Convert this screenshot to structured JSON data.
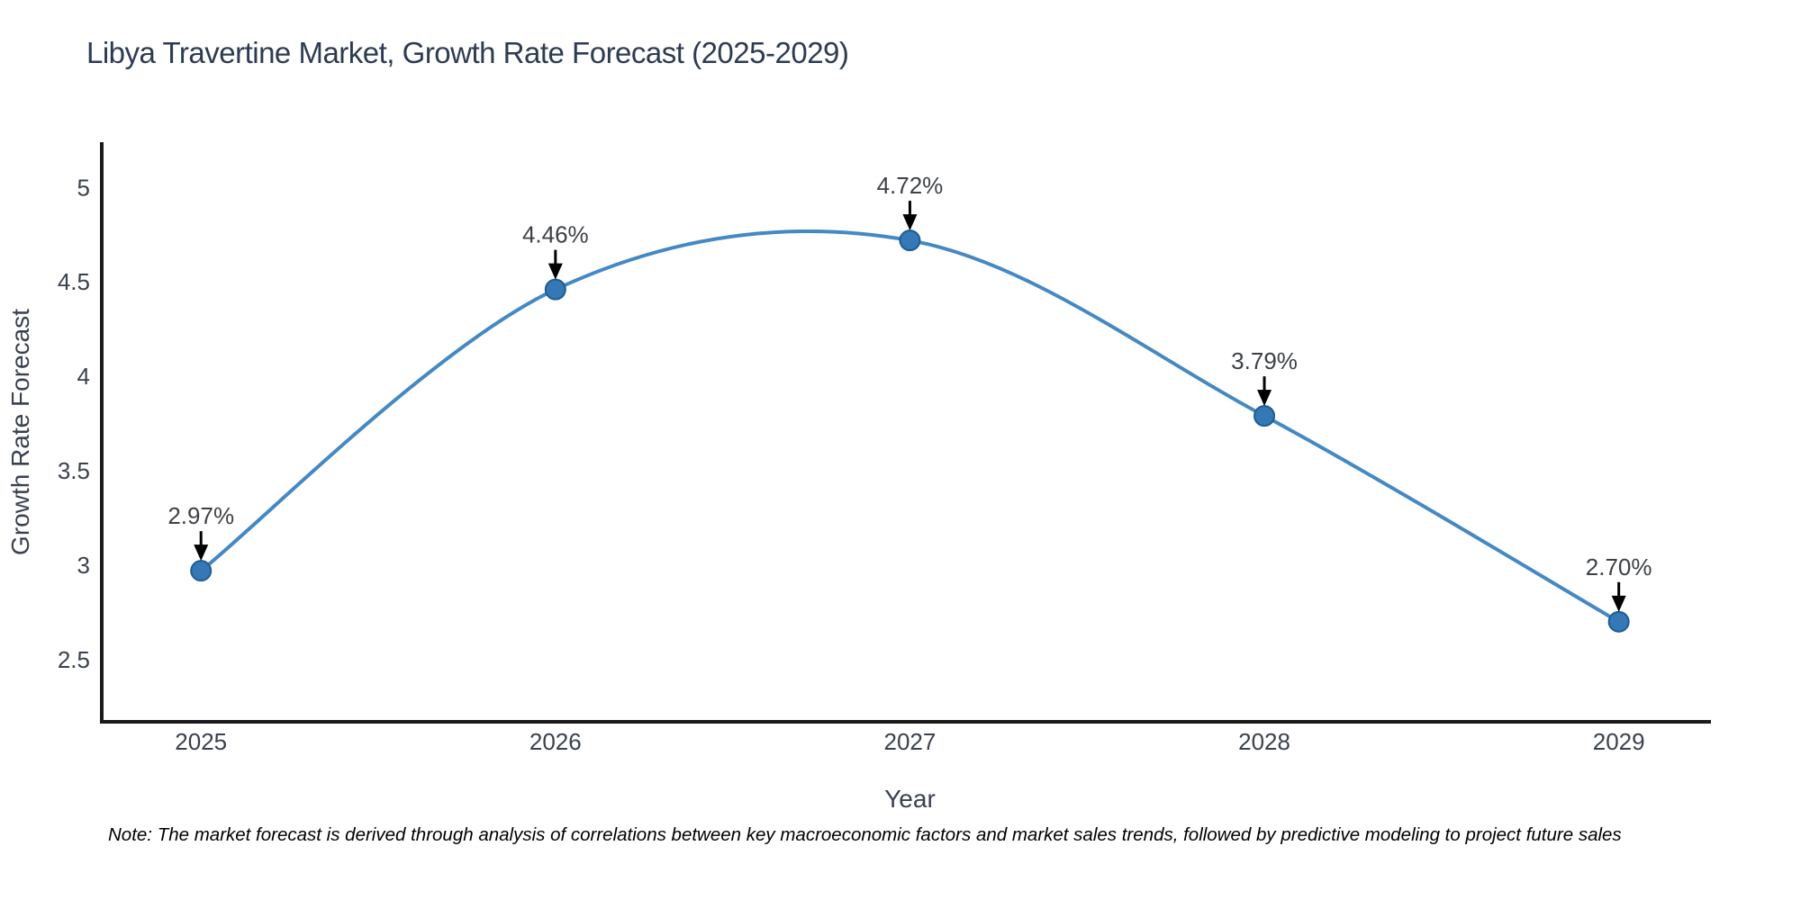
{
  "title": "Libya Travertine Market, Growth Rate Forecast (2025-2029)",
  "note": "Note: The market forecast is derived through analysis of correlations between key macroeconomic factors and market sales trends, followed by predictive modeling to project future sales",
  "chart_data": {
    "type": "line",
    "title": "Libya Travertine Market, Growth Rate Forecast (2025-2029)",
    "x": [
      2025,
      2026,
      2027,
      2028,
      2029
    ],
    "series": [
      {
        "name": "Growth Rate Forecast",
        "values": [
          2.97,
          4.46,
          4.72,
          3.79,
          2.7
        ]
      }
    ],
    "point_labels": [
      "2.97%",
      "4.46%",
      "4.72%",
      "3.79%",
      "2.70%"
    ],
    "xlabel": "Year",
    "ylabel": "Growth Rate Forecast",
    "x_ticks": [
      "2025",
      "2026",
      "2027",
      "2028",
      "2029"
    ],
    "y_ticks": [
      2.5,
      3,
      3.5,
      4,
      4.5,
      5
    ],
    "xlim": [
      2024.72,
      2029.26
    ],
    "ylim": [
      2.17,
      5.24
    ],
    "grid": false,
    "legend": "none",
    "smooth": true,
    "annotations": "black arrows from percent labels down to each data point",
    "colors": {
      "line": "#4488c4",
      "marker": "#3478b5",
      "marker_edge": "#1f5c8f",
      "arrow": "#000000",
      "axis": "#1a1a1a",
      "tick_text": "#39414f",
      "axis_title_text": "#39414f",
      "point_label_text": "#3d4045",
      "title_text": "#2d3b52",
      "background": "#ffffff"
    }
  }
}
